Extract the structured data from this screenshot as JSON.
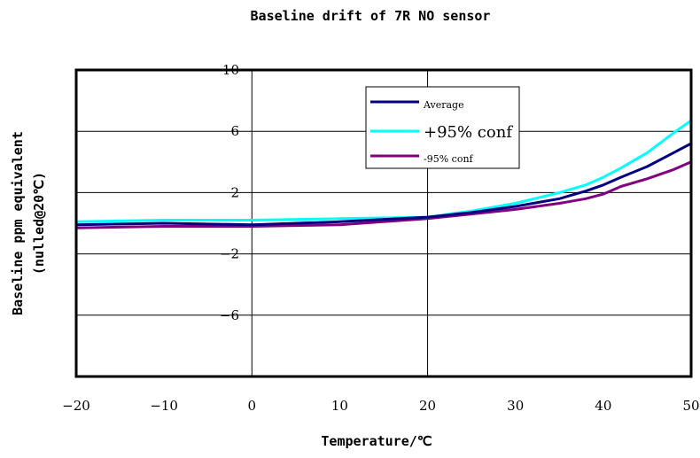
{
  "chart_data": {
    "type": "line",
    "title": "Baseline drift of 7R NO  sensor",
    "xlabel": "Temperature/℃",
    "ylabel_line1": "Baseline ppm equivalent",
    "ylabel_line2": "(nulled@20℃)",
    "xlim": [
      -20,
      50
    ],
    "ylim": [
      -10,
      10
    ],
    "x_ticks": [
      "-20",
      "-10",
      "0",
      "10",
      "20",
      "30",
      "40",
      "50"
    ],
    "y_ticks": [
      "10",
      "6",
      "2",
      "-2",
      "-6"
    ],
    "y_tick_values": [
      10,
      6,
      2,
      -2,
      -6
    ],
    "grid": "horizontal and vertical at y=6,2,-2,-6 and x=0,20",
    "legend_position": "top-center",
    "x": [
      -20,
      -10,
      0,
      10,
      20,
      25,
      30,
      35,
      38,
      40,
      42,
      45,
      48,
      50
    ],
    "series": [
      {
        "name": "Average",
        "color": "#000080",
        "values": [
          -0.1,
          0.0,
          -0.1,
          0.1,
          0.4,
          0.7,
          1.1,
          1.6,
          2.1,
          2.5,
          3.0,
          3.7,
          4.6,
          5.2
        ]
      },
      {
        "name": "+95% conf",
        "color": "#00FFFF",
        "values": [
          0.1,
          0.2,
          0.2,
          0.3,
          0.4,
          0.8,
          1.3,
          2.0,
          2.5,
          3.0,
          3.6,
          4.6,
          5.9,
          6.7
        ]
      },
      {
        "name": "-95% conf",
        "color": "#800080",
        "values": [
          -0.3,
          -0.2,
          -0.2,
          -0.1,
          0.3,
          0.6,
          0.9,
          1.3,
          1.6,
          1.9,
          2.4,
          2.9,
          3.5,
          4.0
        ]
      }
    ]
  }
}
